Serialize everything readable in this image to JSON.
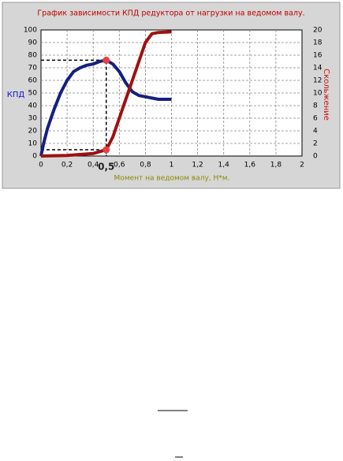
{
  "chart_data": {
    "type": "line",
    "title": "График зависимости КПД редуктора от нагрузки на ведомом валу.",
    "x_label": "Момент на ведомом валу, Н*м.",
    "xlim": [
      0,
      2
    ],
    "xticks": [
      0,
      {
        "value": 0.2,
        "label": "0,2"
      },
      {
        "value": 0.4,
        "label": "0,4"
      },
      {
        "value": 0.6,
        "label": "0,6"
      },
      {
        "value": 0.8,
        "label": "0,8"
      },
      1,
      {
        "value": 1.2,
        "label": "1,2"
      },
      {
        "value": 1.4,
        "label": "1,4"
      },
      {
        "value": 1.6,
        "label": "1,6"
      },
      {
        "value": 1.8,
        "label": "1,8"
      },
      2
    ],
    "ylim": [
      0,
      100
    ],
    "yticks": [
      0,
      10,
      20,
      30,
      40,
      50,
      60,
      70,
      80,
      90,
      100
    ],
    "y2lim": [
      0,
      20
    ],
    "y2ticks": [
      0,
      2,
      4,
      6,
      8,
      10,
      12,
      14,
      16,
      18,
      20
    ],
    "grid": true,
    "series": [
      {
        "name": "КПД",
        "color": "#14207e",
        "x": [
          0,
          0.02,
          0.05,
          0.1,
          0.15,
          0.2,
          0.25,
          0.3,
          0.35,
          0.4,
          0.45,
          0.5,
          0.55,
          0.6,
          0.65,
          0.7,
          0.75,
          0.8,
          0.9,
          1.0
        ],
        "values": [
          0,
          10,
          22,
          37,
          50,
          60,
          67,
          70,
          72,
          73,
          75,
          76,
          73,
          67,
          58,
          51,
          48,
          47,
          45,
          45
        ]
      },
      {
        "name": "Скольжение",
        "color": "#a01010",
        "axis": "y2",
        "x": [
          0,
          0.2,
          0.4,
          0.5,
          0.55,
          0.6,
          0.65,
          0.7,
          0.75,
          0.8,
          0.85,
          0.9,
          1.0
        ],
        "values": [
          0,
          0.1,
          0.4,
          1,
          3,
          6,
          9,
          12,
          15,
          18,
          19.4,
          19.6,
          19.7
        ]
      }
    ],
    "annotation": {
      "text": "0,5",
      "x": 0.5
    },
    "highlights": [
      {
        "x": 0.5,
        "y": 76,
        "axis": "y"
      },
      {
        "x": 0.5,
        "y": 1,
        "axis": "y2"
      }
    ]
  }
}
